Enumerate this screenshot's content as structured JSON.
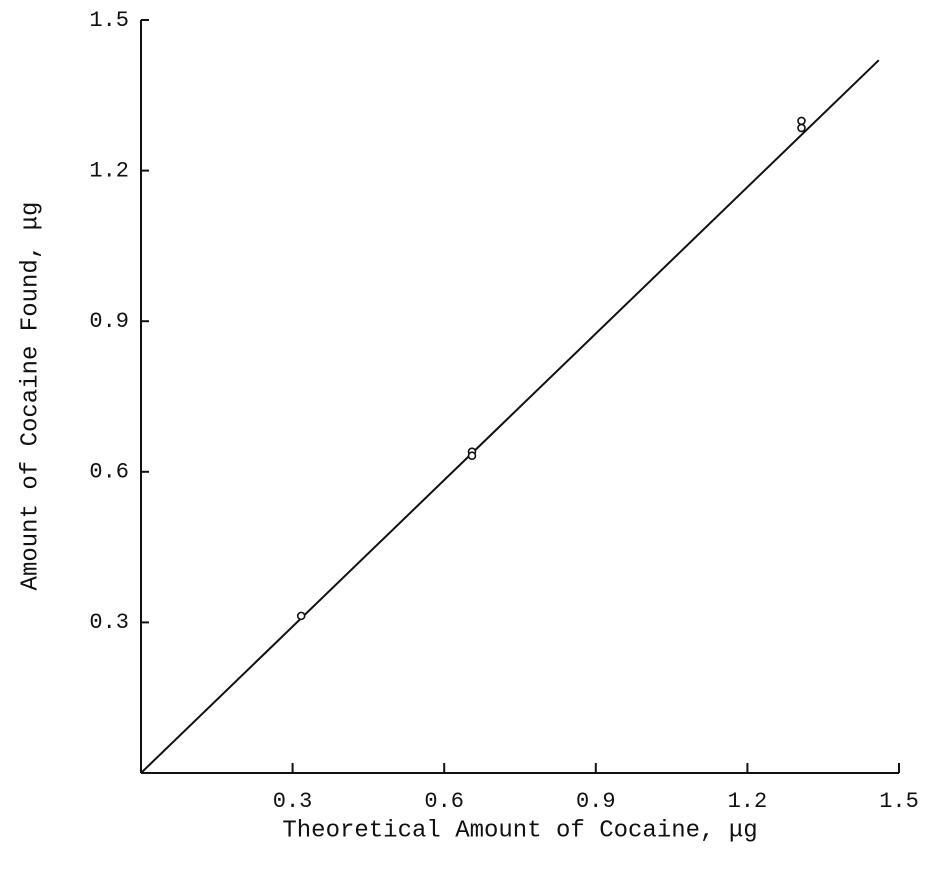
{
  "chart_data": {
    "type": "scatter",
    "xlabel": "Theoretical Amount of Cocaine, μg",
    "ylabel": "Amount of Cocaine Found, μg",
    "x": [
      0.317,
      0.655,
      0.655,
      1.307,
      1.307
    ],
    "y": [
      0.313,
      0.64,
      0.632,
      1.299,
      1.285
    ],
    "color": "#111111",
    "fit_line": {
      "x": [
        0,
        1.46
      ],
      "y": [
        0,
        1.42
      ]
    },
    "xlim": [
      0,
      1.5
    ],
    "ylim": [
      0,
      1.5
    ],
    "xticks": [
      0.3,
      0.6,
      0.9,
      1.2,
      1.5
    ],
    "yticks": [
      0.3,
      0.6,
      0.9,
      1.2,
      1.5
    ],
    "grid": false
  }
}
